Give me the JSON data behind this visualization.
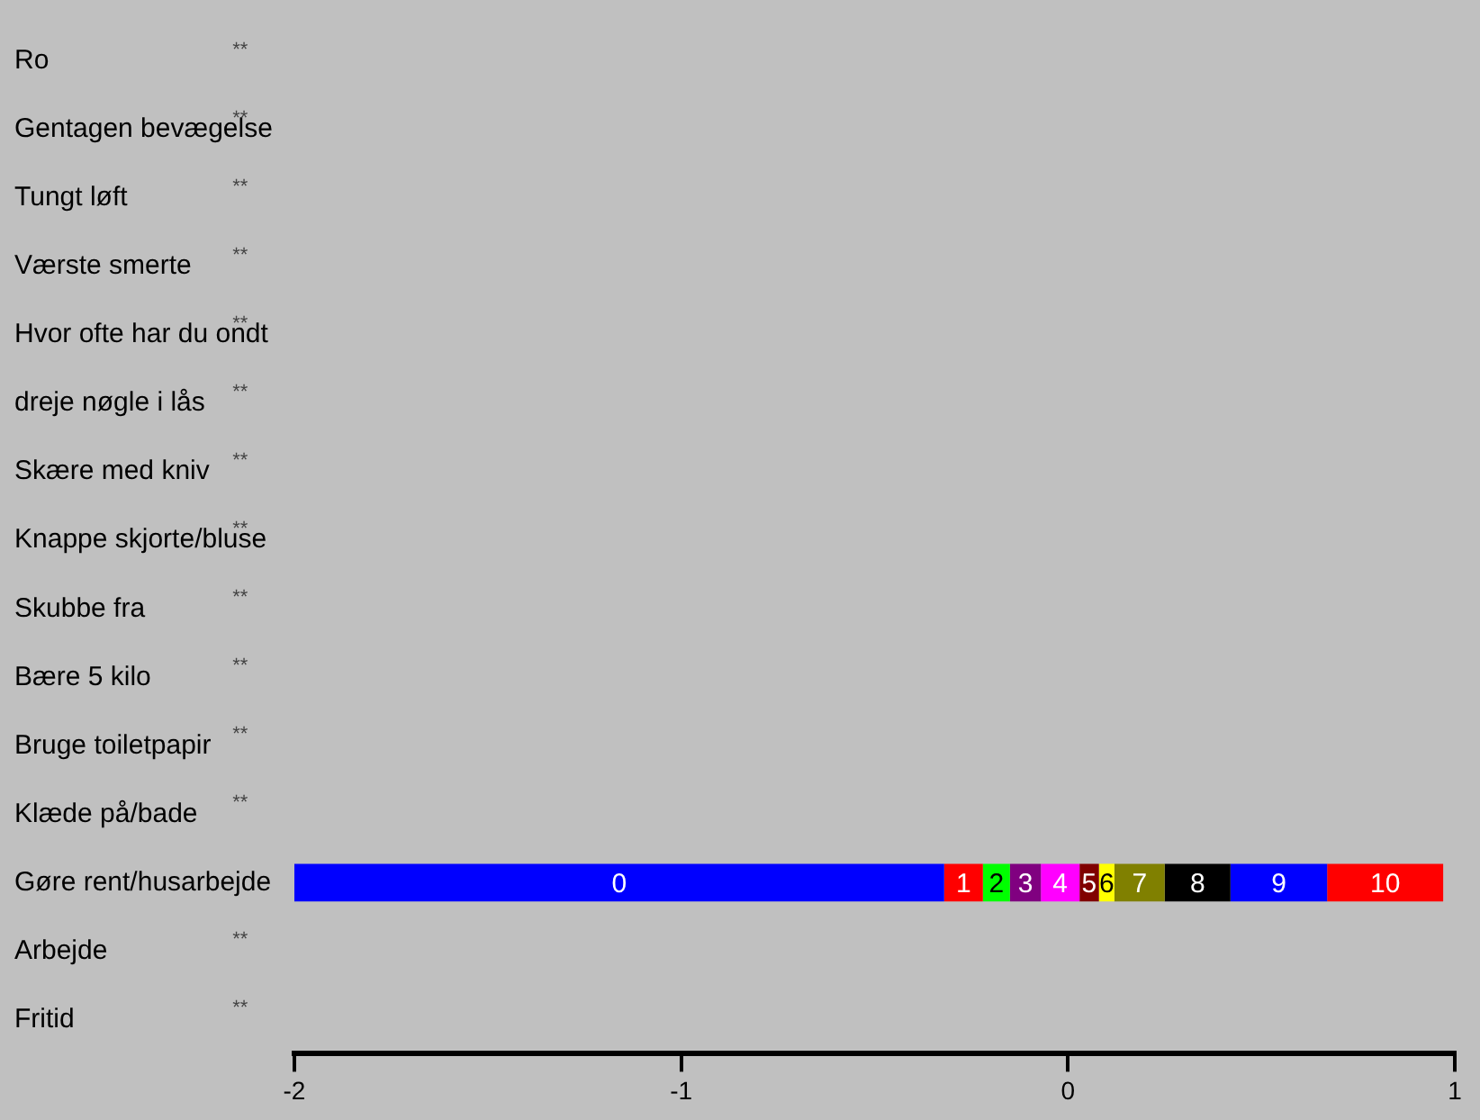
{
  "chart_data": {
    "type": "bar",
    "orientation": "horizontal",
    "categories": [
      "Ro",
      "Gentagen bevægelse",
      "Tungt løft",
      "Værste smerte",
      "Hvor ofte har du ondt",
      "dreje nøgle i lås",
      "Skære med kniv",
      "Knappe skjorte/bluse",
      "Skubbe fra",
      "Bære 5 kilo",
      "Bruge toiletpapir",
      "Klæde på/bade",
      "Gøre rent/husarbejde",
      "Arbejde",
      "Fritid"
    ],
    "series": [
      {
        "name": "0",
        "color": "#0000ff",
        "base": [
          null,
          null,
          null,
          null,
          null,
          null,
          null,
          null,
          null,
          null,
          null,
          null,
          -2,
          null,
          null
        ],
        "values": [
          null,
          null,
          null,
          null,
          null,
          null,
          null,
          null,
          null,
          null,
          null,
          null,
          1.68,
          null,
          null
        ]
      },
      {
        "name": "1",
        "color": "#ff0000",
        "base": [
          null,
          null,
          null,
          null,
          null,
          null,
          null,
          null,
          null,
          null,
          null,
          null,
          -0.32,
          null,
          null
        ],
        "values": [
          null,
          null,
          null,
          null,
          null,
          null,
          null,
          null,
          null,
          null,
          null,
          null,
          0.1,
          null,
          null
        ]
      },
      {
        "name": "2",
        "color": "#00ff00",
        "base": [
          null,
          null,
          null,
          null,
          null,
          null,
          null,
          null,
          null,
          null,
          null,
          null,
          -0.22,
          null,
          null
        ],
        "values": [
          null,
          null,
          null,
          null,
          null,
          null,
          null,
          null,
          null,
          null,
          null,
          null,
          0.07,
          null,
          null
        ]
      },
      {
        "name": "3",
        "color": "#800080",
        "base": [
          null,
          null,
          null,
          null,
          null,
          null,
          null,
          null,
          null,
          null,
          null,
          null,
          -0.15,
          null,
          null
        ],
        "values": [
          null,
          null,
          null,
          null,
          null,
          null,
          null,
          null,
          null,
          null,
          null,
          null,
          0.08,
          null,
          null
        ]
      },
      {
        "name": "4",
        "color": "#ff00ff",
        "base": [
          null,
          null,
          null,
          null,
          null,
          null,
          null,
          null,
          null,
          null,
          null,
          null,
          -0.07,
          null,
          null
        ],
        "values": [
          null,
          null,
          null,
          null,
          null,
          null,
          null,
          null,
          null,
          null,
          null,
          null,
          0.1,
          null,
          null
        ]
      },
      {
        "name": "5",
        "color": "#800000",
        "base": [
          null,
          null,
          null,
          null,
          null,
          null,
          null,
          null,
          null,
          null,
          null,
          null,
          0.03,
          null,
          null
        ],
        "values": [
          null,
          null,
          null,
          null,
          null,
          null,
          null,
          null,
          null,
          null,
          null,
          null,
          0.05,
          null,
          null
        ]
      },
      {
        "name": "6",
        "color": "#ffff00",
        "base": [
          null,
          null,
          null,
          null,
          null,
          null,
          null,
          null,
          null,
          null,
          null,
          null,
          0.08,
          null,
          null
        ],
        "values": [
          null,
          null,
          null,
          null,
          null,
          null,
          null,
          null,
          null,
          null,
          null,
          null,
          0.04,
          null,
          null
        ]
      },
      {
        "name": "7",
        "color": "#808000",
        "base": [
          null,
          null,
          null,
          null,
          null,
          null,
          null,
          null,
          null,
          null,
          null,
          null,
          0.12,
          null,
          null
        ],
        "values": [
          null,
          null,
          null,
          null,
          null,
          null,
          null,
          null,
          null,
          null,
          null,
          null,
          0.13,
          null,
          null
        ]
      },
      {
        "name": "8",
        "color": "#000000",
        "base": [
          null,
          null,
          null,
          null,
          null,
          null,
          null,
          null,
          null,
          null,
          null,
          null,
          0.25,
          null,
          null
        ],
        "values": [
          null,
          null,
          null,
          null,
          null,
          null,
          null,
          null,
          null,
          null,
          null,
          null,
          0.17,
          null,
          null
        ]
      },
      {
        "name": "9",
        "color": "#0000ff",
        "base": [
          null,
          null,
          null,
          null,
          null,
          null,
          null,
          null,
          null,
          null,
          null,
          null,
          0.42,
          null,
          null
        ],
        "values": [
          null,
          null,
          null,
          null,
          null,
          null,
          null,
          null,
          null,
          null,
          null,
          null,
          0.25,
          null,
          null
        ]
      },
      {
        "name": "10",
        "color": "#ff0000",
        "base": [
          null,
          null,
          null,
          null,
          null,
          null,
          null,
          null,
          null,
          null,
          null,
          null,
          0.67,
          null,
          null
        ],
        "values": [
          null,
          null,
          null,
          null,
          null,
          null,
          null,
          null,
          null,
          null,
          null,
          null,
          0.3,
          null,
          null
        ]
      }
    ],
    "xlim": [
      -2,
      1
    ],
    "xticks": [
      -2,
      -1,
      0,
      1
    ],
    "annotations": [
      "**",
      "**",
      "**",
      "**",
      "**",
      "**",
      "**",
      "**",
      "**",
      "**",
      "**",
      "**",
      "**",
      "**"
    ],
    "grid": false
  }
}
